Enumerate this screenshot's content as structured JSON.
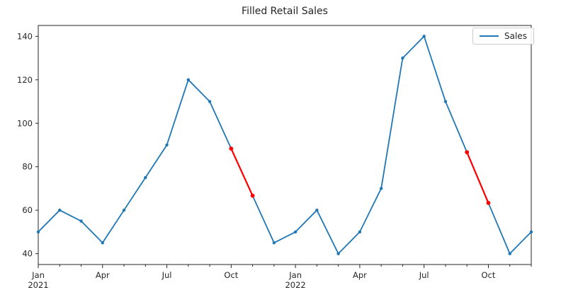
{
  "window": {
    "background": "#ffffff"
  },
  "chart_data": {
    "type": "line",
    "title": "Filled Retail Sales",
    "x": [
      "2021-01",
      "2021-02",
      "2021-03",
      "2021-04",
      "2021-05",
      "2021-06",
      "2021-07",
      "2021-08",
      "2021-09",
      "2021-10",
      "2021-11",
      "2021-12",
      "2022-01",
      "2022-02",
      "2022-03",
      "2022-04",
      "2022-05",
      "2022-06",
      "2022-07",
      "2022-08",
      "2022-09",
      "2022-10",
      "2022-11",
      "2022-12"
    ],
    "series": [
      {
        "name": "Sales",
        "color": "#1f77b4",
        "values": [
          50,
          60,
          55,
          45,
          60,
          75,
          90,
          120,
          110,
          88.33,
          66.67,
          45,
          50,
          60,
          40,
          50,
          70,
          130,
          140,
          110,
          86.67,
          63.33,
          40,
          50
        ]
      }
    ],
    "filled_points": {
      "indices": [
        9,
        10,
        20,
        21
      ],
      "color": "#ff0000"
    },
    "x_major_ticks": [
      {
        "index": 0,
        "label": "Jan",
        "year": "2021"
      },
      {
        "index": 3,
        "label": "Apr"
      },
      {
        "index": 6,
        "label": "Jul"
      },
      {
        "index": 9,
        "label": "Oct"
      },
      {
        "index": 12,
        "label": "Jan",
        "year": "2022"
      },
      {
        "index": 15,
        "label": "Apr"
      },
      {
        "index": 18,
        "label": "Jul"
      },
      {
        "index": 21,
        "label": "Oct"
      }
    ],
    "y_ticks": [
      40,
      60,
      80,
      100,
      120,
      140
    ],
    "ylim": [
      35,
      145
    ],
    "grid": false,
    "legend": {
      "label": "Sales",
      "position": "upper right"
    },
    "axis_color": "#262626",
    "text_color": "#262626"
  }
}
